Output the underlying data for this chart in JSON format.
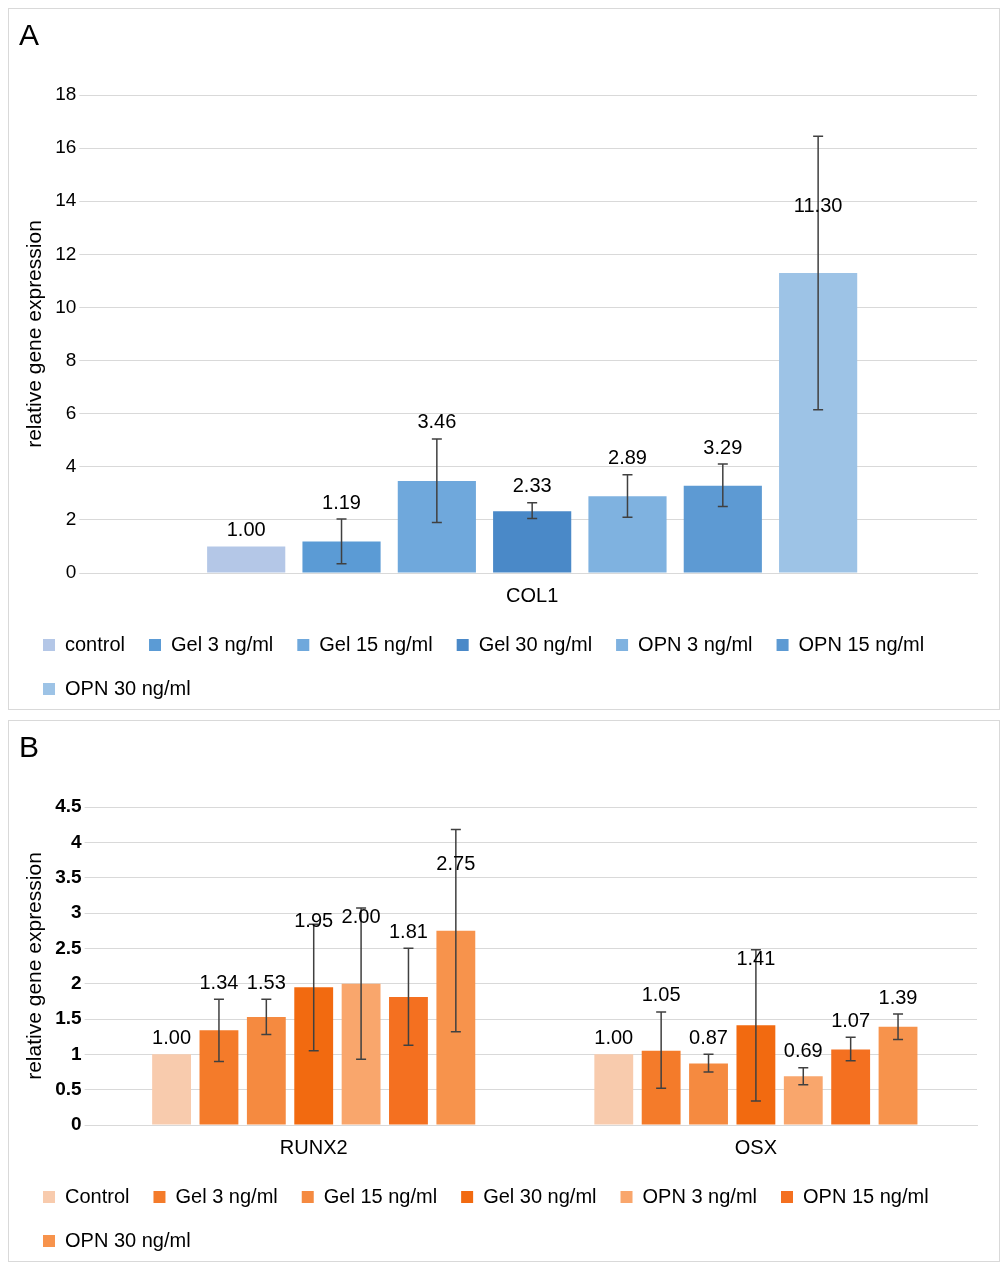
{
  "chart_data": [
    {
      "type": "bar",
      "title": "A",
      "ylabel": "relative gene expression",
      "categories": [
        "COL1"
      ],
      "ylim": [
        0,
        18
      ],
      "yticks": [
        0,
        2,
        4,
        6,
        8,
        10,
        12,
        14,
        16,
        18
      ],
      "grid": "y",
      "legend": "bottom",
      "series": [
        {
          "name": "control",
          "color": "#b4c7e7",
          "values": [
            1.0
          ],
          "value_labels": [
            "1.00"
          ]
        },
        {
          "name": "Gel 3 ng/ml",
          "color": "#5b9bd5",
          "values": [
            1.19
          ],
          "errors": [
            [
              0.35,
              2.03
            ]
          ],
          "value_labels": [
            "1.19"
          ]
        },
        {
          "name": "Gel 15 ng/ml",
          "color": "#6fa8dc",
          "values": [
            3.46
          ],
          "errors": [
            [
              1.9,
              5.05
            ]
          ],
          "value_labels": [
            "3.46"
          ]
        },
        {
          "name": "Gel 30 ng/ml",
          "color": "#4a89c8",
          "values": [
            2.33
          ],
          "errors": [
            [
              2.05,
              2.65
            ]
          ],
          "value_labels": [
            "2.33"
          ]
        },
        {
          "name": "OPN 3 ng/ml",
          "color": "#7fb2e0",
          "values": [
            2.89
          ],
          "errors": [
            [
              2.1,
              3.7
            ]
          ],
          "value_labels": [
            "2.89"
          ]
        },
        {
          "name": "OPN 15 ng/ml",
          "color": "#5d9ad3",
          "values": [
            3.29
          ],
          "errors": [
            [
              2.5,
              4.1
            ]
          ],
          "value_labels": [
            "3.29"
          ]
        },
        {
          "name": "OPN 30 ng/ml",
          "color": "#9dc3e6",
          "values": [
            11.3
          ],
          "errors": [
            [
              6.15,
              16.45
            ]
          ],
          "value_labels": [
            "11.30"
          ]
        }
      ]
    },
    {
      "type": "bar",
      "title": "B",
      "ylabel": "relative gene expression",
      "categories": [
        "RUNX2",
        "OSX"
      ],
      "ylim": [
        0,
        4.5
      ],
      "yticks": [
        0,
        0.5,
        1,
        1.5,
        2,
        2.5,
        3,
        3.5,
        4,
        4.5
      ],
      "grid": "y",
      "legend": "bottom",
      "series": [
        {
          "name": "Control",
          "color": "#f8cbad",
          "values": [
            1.0,
            1.0
          ],
          "value_labels": [
            "1.00",
            "1.00"
          ]
        },
        {
          "name": "Gel 3 ng/ml",
          "color": "#f47b2a",
          "values": [
            1.34,
            1.05
          ],
          "errors": [
            [
              0.9,
              1.78
            ],
            [
              0.52,
              1.6
            ]
          ],
          "value_labels": [
            "1.34",
            "1.05"
          ]
        },
        {
          "name": "Gel 15 ng/ml",
          "color": "#f58a40",
          "values": [
            1.53,
            0.87
          ],
          "errors": [
            [
              1.28,
              1.78
            ],
            [
              0.75,
              1.0
            ]
          ],
          "value_labels": [
            "1.53",
            "0.87"
          ]
        },
        {
          "name": "Gel 30 ng/ml",
          "color": "#f26a10",
          "values": [
            1.95,
            1.41
          ],
          "errors": [
            [
              1.05,
              2.84
            ],
            [
              0.34,
              2.48
            ]
          ],
          "value_labels": [
            "1.95",
            "1.41"
          ]
        },
        {
          "name": "OPN 3 ng/ml",
          "color": "#f9a66c",
          "values": [
            2.0,
            0.69
          ],
          "errors": [
            [
              0.93,
              3.07
            ],
            [
              0.57,
              0.81
            ]
          ],
          "value_labels": [
            "2.00",
            "0.69"
          ]
        },
        {
          "name": "OPN 15 ng/ml",
          "color": "#f47020",
          "values": [
            1.81,
            1.07
          ],
          "errors": [
            [
              1.13,
              2.5
            ],
            [
              0.91,
              1.24
            ]
          ],
          "value_labels": [
            "1.81",
            "1.07"
          ]
        },
        {
          "name": "OPN 30 ng/ml",
          "color": "#f7934c",
          "values": [
            2.75,
            1.39
          ],
          "errors": [
            [
              1.32,
              4.18
            ],
            [
              1.21,
              1.57
            ]
          ],
          "value_labels": [
            "2.75",
            "1.39"
          ]
        }
      ]
    }
  ]
}
